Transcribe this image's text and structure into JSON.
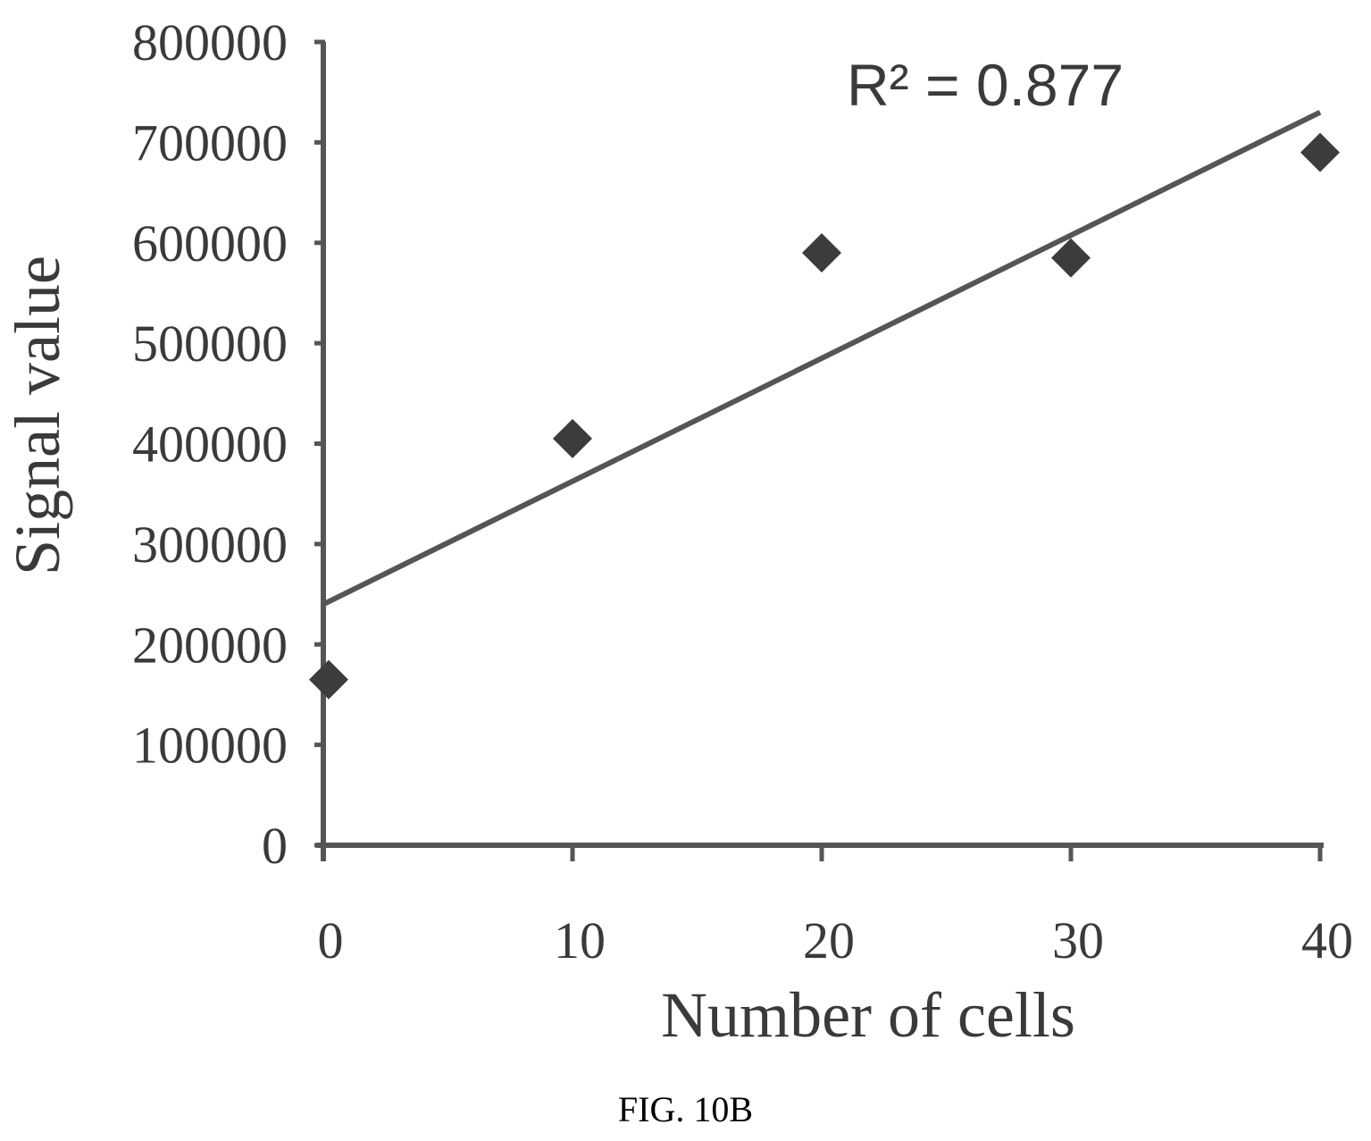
{
  "chart_data": {
    "type": "scatter",
    "x": [
      0,
      10,
      20,
      30,
      40
    ],
    "y": [
      165000,
      405000,
      590000,
      585000,
      690000
    ],
    "trendline": {
      "type": "linear",
      "x": [
        0,
        40
      ],
      "y": [
        240000,
        730000
      ]
    },
    "annotation": "R² = 0.877",
    "xlabel": "Number of cells",
    "ylabel": "Signal value",
    "xlim": [
      0,
      40
    ],
    "ylim": [
      0,
      800000
    ],
    "xticks": [
      0,
      10,
      20,
      30,
      40
    ],
    "yticks": [
      0,
      100000,
      200000,
      300000,
      400000,
      500000,
      600000,
      700000,
      800000
    ],
    "marker": "diamond",
    "grid": false,
    "colors": {
      "marker": "#3c3c3c",
      "axis": "#555555",
      "line": "#555555",
      "text": "#3a3a3a"
    }
  },
  "caption": "FIG. 10B"
}
